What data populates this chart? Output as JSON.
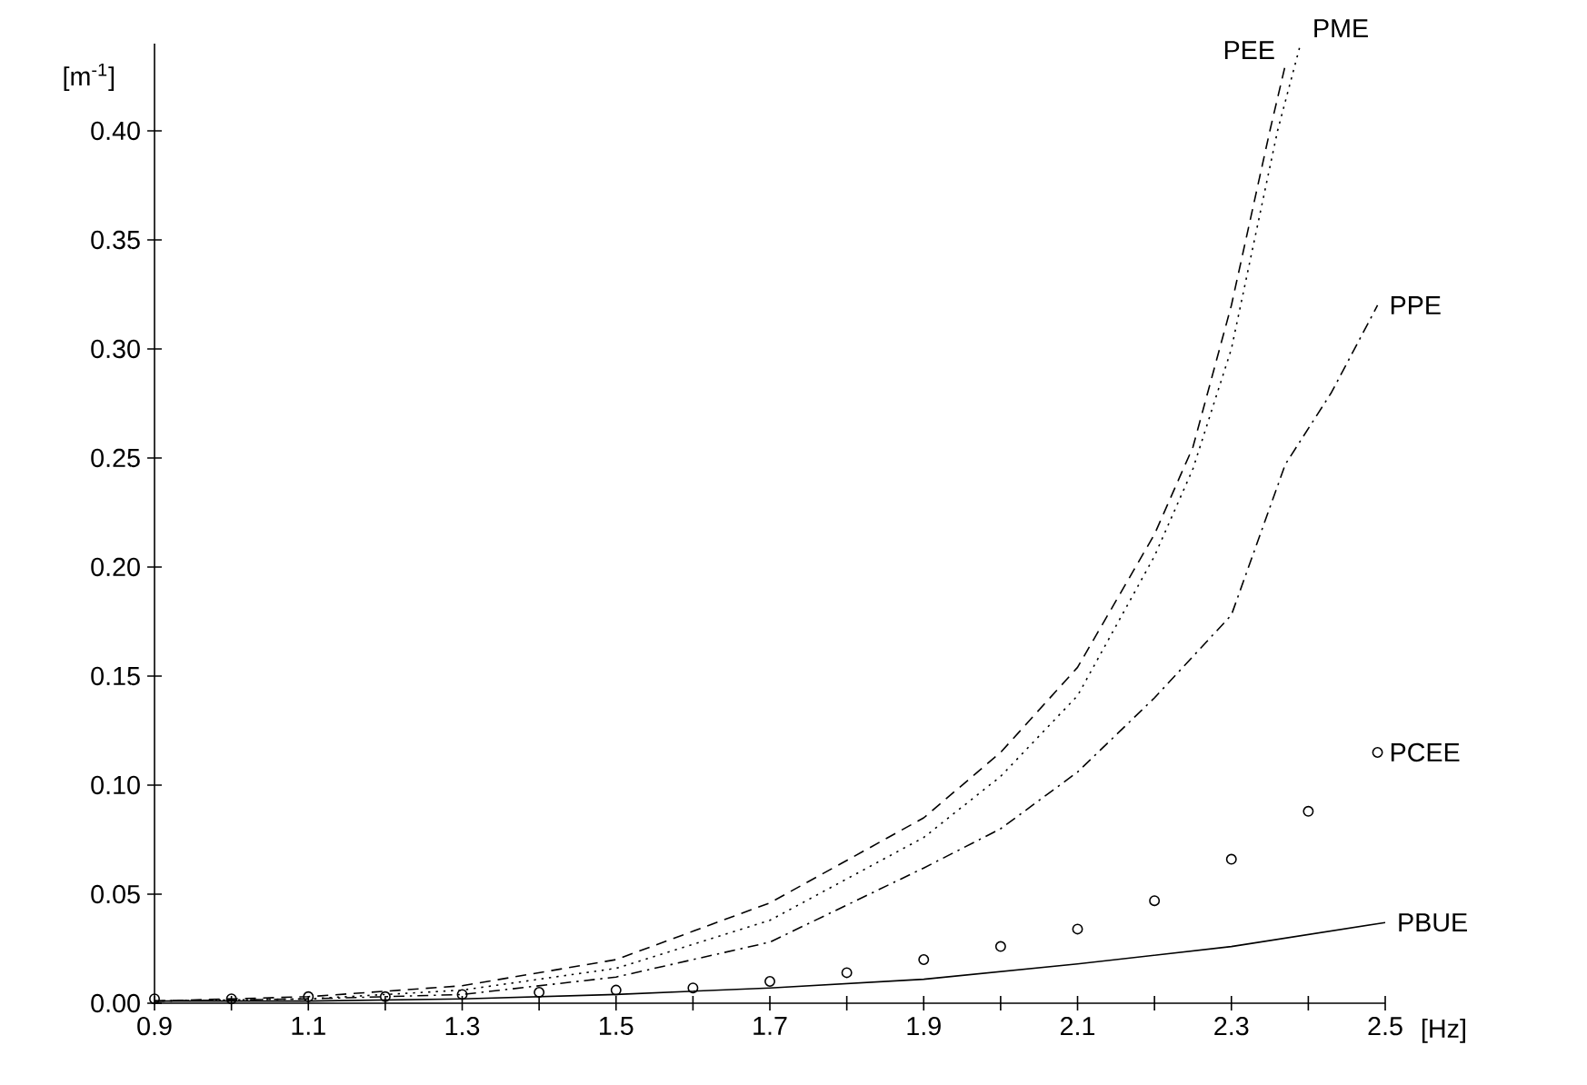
{
  "chart_data": {
    "type": "line",
    "xlabel": "[Hz]",
    "ylabel": "[m$^{-1}$]",
    "xlim": [
      0.9,
      2.5
    ],
    "ylim": [
      0,
      0.44
    ],
    "xticks": [
      0.9,
      {
        "value": 1.0,
        "label": null
      },
      1.1,
      {
        "value": 1.2,
        "label": null
      },
      1.3,
      {
        "value": 1.4,
        "label": null
      },
      1.5,
      {
        "value": 1.6,
        "label": null
      },
      1.7,
      {
        "value": 1.8,
        "label": null
      },
      1.9,
      {
        "value": 2.0,
        "label": null
      },
      2.1,
      {
        "value": 2.2,
        "label": null
      },
      2.3,
      {
        "value": 2.4,
        "label": null
      },
      2.5
    ],
    "yticks": [
      {
        "value": 0,
        "label": "0.00"
      },
      0.05,
      {
        "value": 0.1,
        "label": "0.10"
      },
      0.15,
      {
        "value": 0.2,
        "label": "0.20"
      },
      0.25,
      {
        "value": 0.3,
        "label": "0.30"
      },
      0.35,
      {
        "value": 0.4,
        "label": "0.40"
      }
    ],
    "grid": false,
    "series": [
      {
        "name": "PEE",
        "color": "#000000",
        "line_style": "dashed",
        "x": [
          0.9,
          1.1,
          1.3,
          1.5,
          1.7,
          1.9,
          2.0,
          2.1,
          2.2,
          2.25,
          2.3,
          2.35,
          2.37
        ],
        "values": [
          0.001,
          0.003,
          0.008,
          0.02,
          0.046,
          0.085,
          0.115,
          0.154,
          0.215,
          0.255,
          0.32,
          0.4,
          0.43
        ]
      },
      {
        "name": "PME",
        "color": "#000000",
        "line_style": "dotted",
        "x": [
          0.9,
          1.1,
          1.3,
          1.5,
          1.7,
          1.9,
          2.0,
          2.1,
          2.2,
          2.25,
          2.3,
          2.36,
          2.39
        ],
        "values": [
          0.001,
          0.002,
          0.006,
          0.016,
          0.038,
          0.076,
          0.104,
          0.141,
          0.205,
          0.245,
          0.3,
          0.4,
          0.44
        ]
      },
      {
        "name": "PPE",
        "color": "#000000",
        "line_style": "dashdot",
        "x": [
          0.9,
          1.1,
          1.3,
          1.5,
          1.7,
          1.9,
          2.0,
          2.1,
          2.2,
          2.3,
          2.37,
          2.43,
          2.49
        ],
        "values": [
          0.001,
          0.002,
          0.004,
          0.012,
          0.028,
          0.062,
          0.08,
          0.106,
          0.14,
          0.178,
          0.247,
          0.28,
          0.32
        ]
      },
      {
        "name": "PCEE",
        "type": "scatter",
        "marker": "circle",
        "color": "#000000",
        "x": [
          0.9,
          1.0,
          1.1,
          1.2,
          1.3,
          1.4,
          1.5,
          1.6,
          1.7,
          1.8,
          1.9,
          2.0,
          2.1,
          2.2,
          2.3,
          2.4,
          2.49
        ],
        "values": [
          0.002,
          0.002,
          0.003,
          0.003,
          0.004,
          0.005,
          0.006,
          0.007,
          0.01,
          0.014,
          0.02,
          0.026,
          0.034,
          0.047,
          0.066,
          0.088,
          0.115
        ]
      },
      {
        "name": "PBUE",
        "color": "#000000",
        "line_style": "solid",
        "x": [
          0.9,
          1.1,
          1.3,
          1.5,
          1.7,
          1.9,
          2.1,
          2.3,
          2.5
        ],
        "values": [
          0.001,
          0.001,
          0.002,
          0.004,
          0.007,
          0.011,
          0.018,
          0.026,
          0.037
        ]
      }
    ]
  }
}
